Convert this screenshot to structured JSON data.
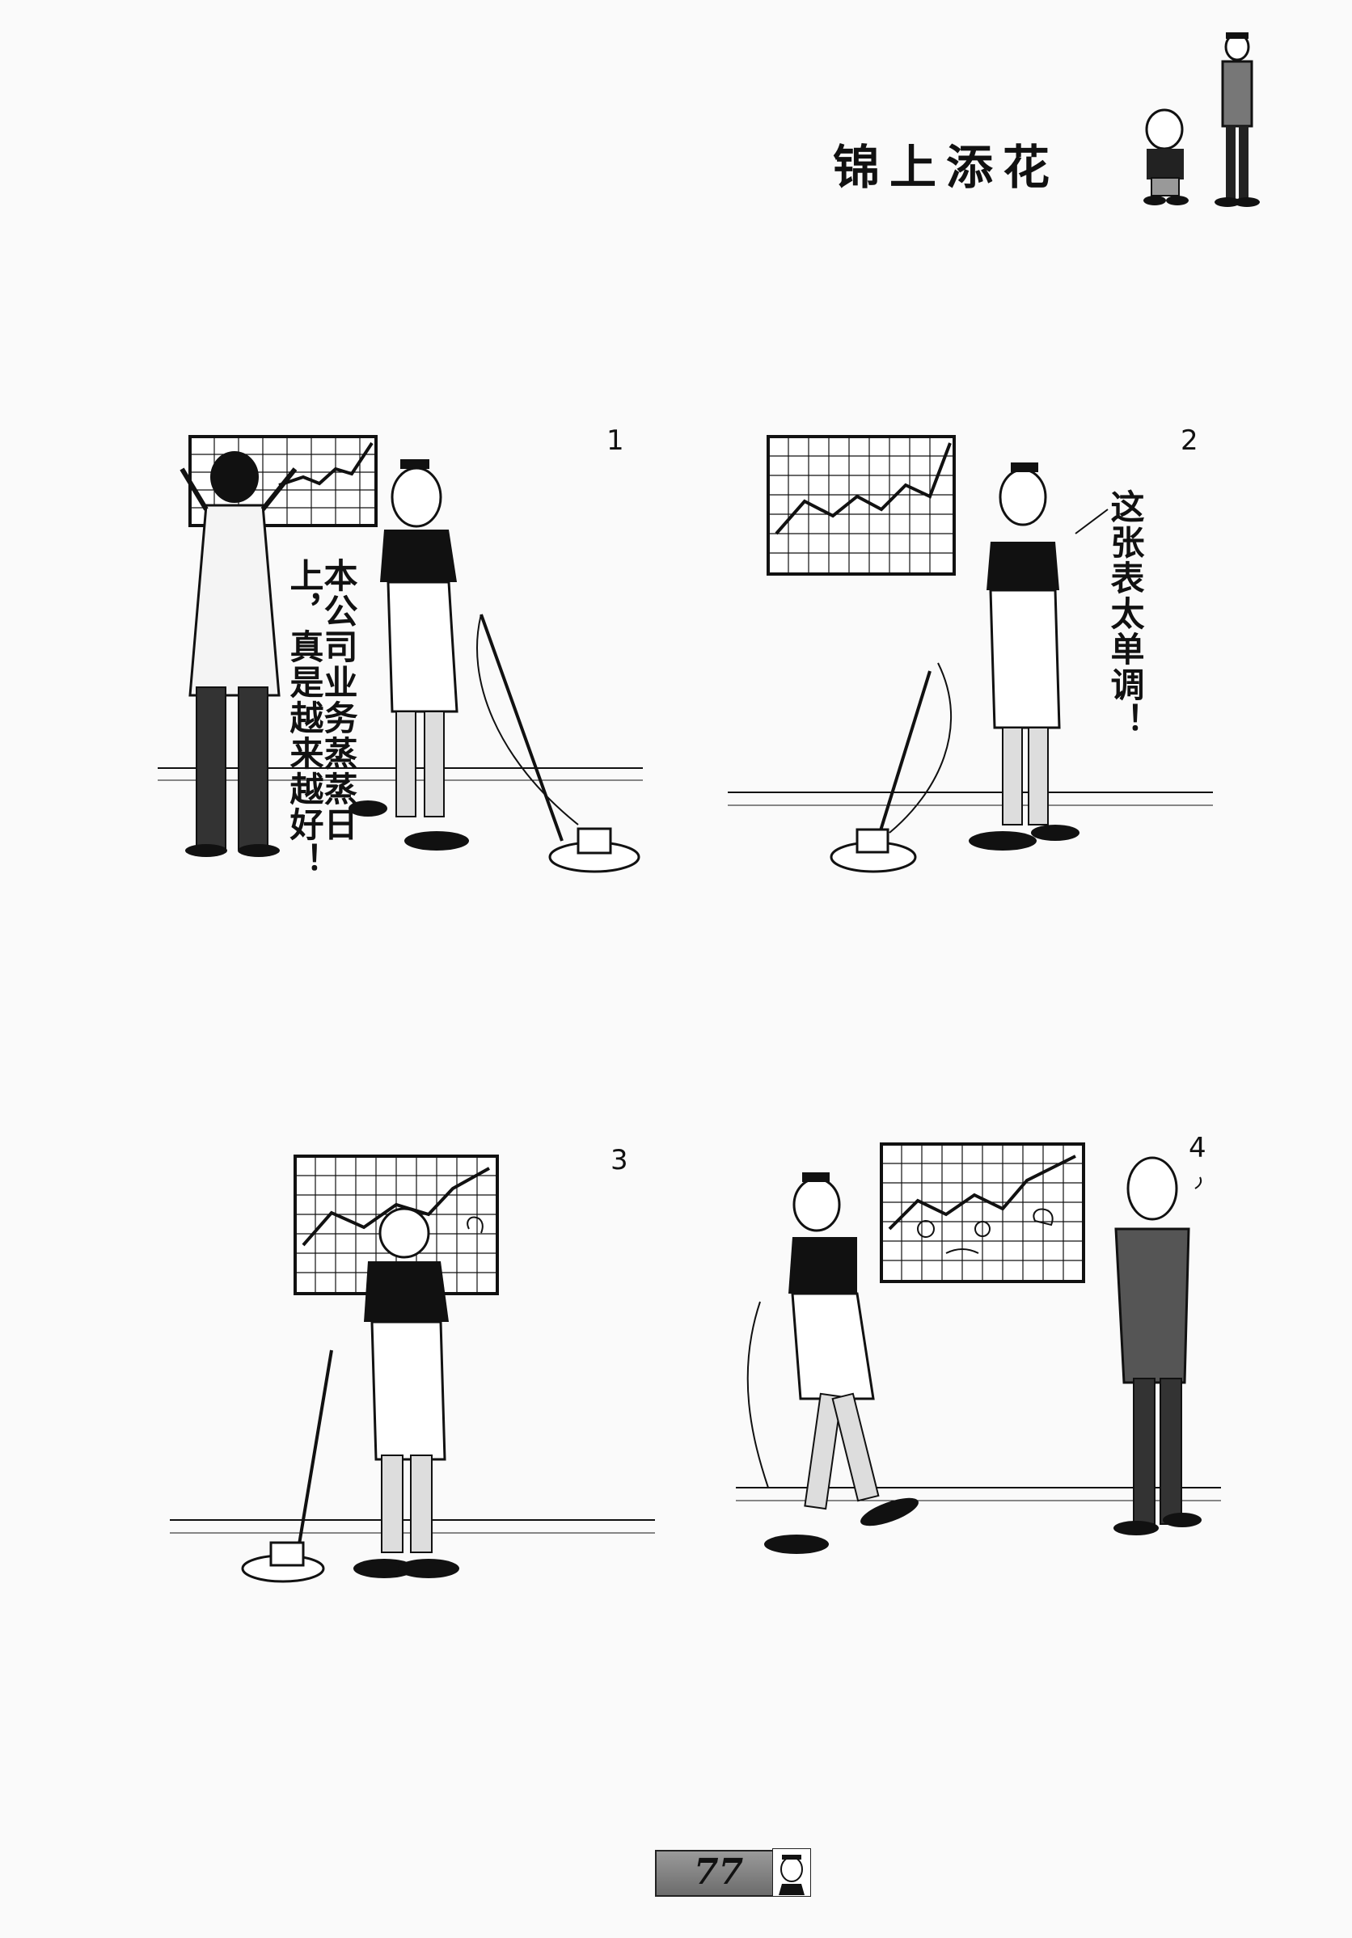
{
  "page": {
    "title": "锦上添花",
    "page_number": "77"
  },
  "panels": [
    {
      "number": "1",
      "speech": "本公司业务蒸蒸日上，真是越来越好！"
    },
    {
      "number": "2",
      "speech": "这张表太单调！"
    },
    {
      "number": "3"
    },
    {
      "number": "4"
    }
  ]
}
